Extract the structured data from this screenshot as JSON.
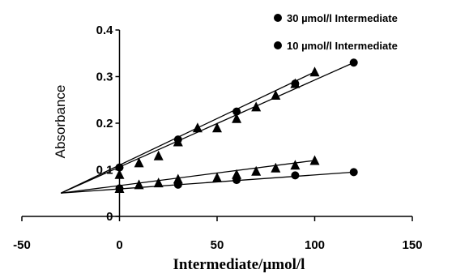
{
  "chart_data": {
    "type": "scatter",
    "xlabel": "Intermediate/µmol/l",
    "ylabel": "Absorbance",
    "xlim": [
      -50,
      150
    ],
    "ylim": [
      0,
      0.4
    ],
    "xticks": [
      "-50",
      "0",
      "50",
      "100",
      "150"
    ],
    "yticks": [
      "0",
      "0.1",
      "0.2",
      "0.3",
      "0.4"
    ],
    "legend_position": "top-right",
    "legend": [
      "30 µmol/l Intermediate",
      "10 µmol/l Intermediate"
    ],
    "series": [
      {
        "name": "30 µmol/l Intermediate",
        "marker": "triangle",
        "line": "fit",
        "x": [
          0,
          10,
          20,
          30,
          40,
          50,
          60,
          70,
          80,
          90,
          100
        ],
        "y": [
          0.09,
          0.115,
          0.13,
          0.16,
          0.19,
          0.19,
          0.21,
          0.235,
          0.26,
          0.285,
          0.31
        ]
      },
      {
        "name": "30 µmol/l Intermediate",
        "marker": "circle",
        "line": "fit",
        "x": [
          0,
          30,
          60,
          90,
          120
        ],
        "y": [
          0.105,
          0.165,
          0.225,
          0.285,
          0.33
        ]
      },
      {
        "name": "10 µmol/l Intermediate",
        "marker": "triangle",
        "line": "fit",
        "x": [
          0,
          10,
          20,
          30,
          50,
          60,
          70,
          80,
          90,
          100
        ],
        "y": [
          0.06,
          0.068,
          0.072,
          0.08,
          0.083,
          0.09,
          0.097,
          0.104,
          0.11,
          0.12
        ]
      },
      {
        "name": "10 µmol/l Intermediate",
        "marker": "circle",
        "line": "fit",
        "x": [
          0,
          30,
          60,
          90,
          120
        ],
        "y": [
          0.06,
          0.068,
          0.078,
          0.088,
          0.095
        ]
      }
    ],
    "fit_lines": [
      {
        "x": [
          -30,
          120
        ],
        "y": [
          0.05,
          0.33
        ]
      },
      {
        "x": [
          -30,
          100
        ],
        "y": [
          0.05,
          0.31
        ]
      },
      {
        "x": [
          -30,
          100
        ],
        "y": [
          0.05,
          0.12
        ]
      },
      {
        "x": [
          -30,
          120
        ],
        "y": [
          0.05,
          0.095
        ]
      }
    ]
  }
}
